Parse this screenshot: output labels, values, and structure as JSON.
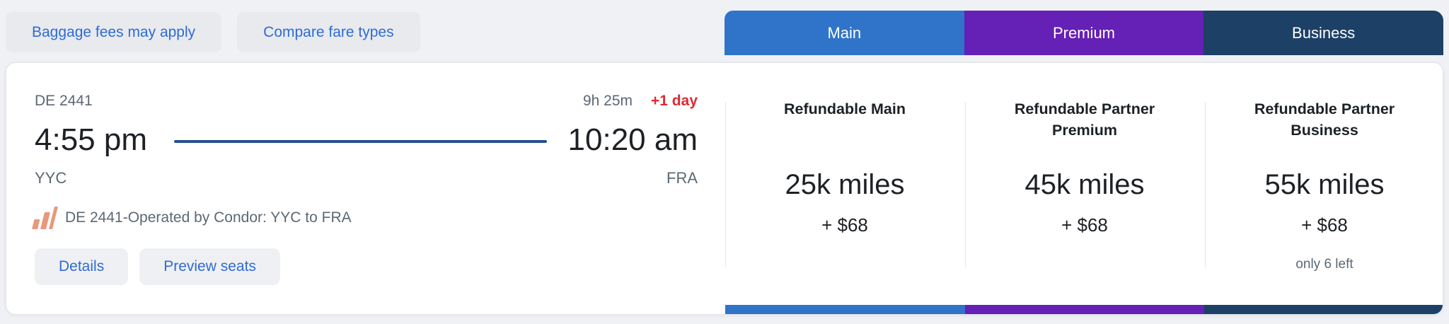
{
  "top_bar": {
    "baggage_button": "Baggage fees may apply",
    "compare_button": "Compare fare types"
  },
  "fare_tabs": [
    {
      "label": "Main",
      "color": "#2f74c9"
    },
    {
      "label": "Premium",
      "color": "#6520b5"
    },
    {
      "label": "Business",
      "color": "#1d4066"
    }
  ],
  "flight": {
    "flight_number": "DE 2441",
    "duration": "9h 25m",
    "day_offset": "+1 day",
    "departure_time": "4:55 pm",
    "arrival_time": "10:20 am",
    "origin": "YYC",
    "destination": "FRA",
    "operated_by": "DE 2441-Operated by Condor: YYC to FRA",
    "details_button": "Details",
    "preview_seats_button": "Preview seats"
  },
  "fare_options": [
    {
      "title_line1": "Refundable Main",
      "title_line2": "",
      "miles": "25k miles",
      "taxes": "+ $68",
      "note": "",
      "accent": "#2f74c9"
    },
    {
      "title_line1": "Refundable Partner",
      "title_line2": "Premium",
      "miles": "45k miles",
      "taxes": "+ $68",
      "note": "",
      "accent": "#6520b5"
    },
    {
      "title_line1": "Refundable Partner",
      "title_line2": "Business",
      "miles": "55k miles",
      "taxes": "+ $68",
      "note": "only 6 left",
      "accent": "#1d4066"
    }
  ],
  "icons": {
    "carrier_logo": "condor-stripes-icon"
  },
  "colors": {
    "page_background": "#eff1f4",
    "card_background": "#ffffff",
    "link_blue": "#2f6bd5",
    "day_offset_red": "#de2a32",
    "route_line_blue": "#24508f",
    "secondary_gray": "#5c6873",
    "primary_text": "#1d2126"
  }
}
